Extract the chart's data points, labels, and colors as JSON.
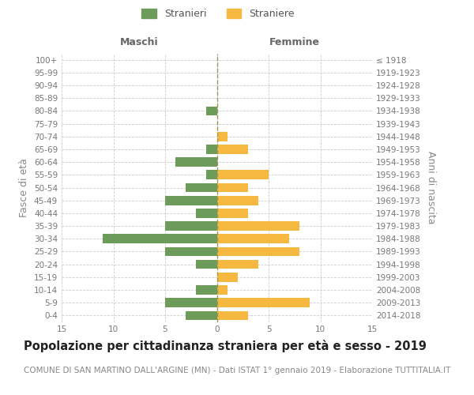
{
  "age_groups": [
    "0-4",
    "5-9",
    "10-14",
    "15-19",
    "20-24",
    "25-29",
    "30-34",
    "35-39",
    "40-44",
    "45-49",
    "50-54",
    "55-59",
    "60-64",
    "65-69",
    "70-74",
    "75-79",
    "80-84",
    "85-89",
    "90-94",
    "95-99",
    "100+"
  ],
  "birth_years": [
    "2014-2018",
    "2009-2013",
    "2004-2008",
    "1999-2003",
    "1994-1998",
    "1989-1993",
    "1984-1988",
    "1979-1983",
    "1974-1978",
    "1969-1973",
    "1964-1968",
    "1959-1963",
    "1954-1958",
    "1949-1953",
    "1944-1948",
    "1939-1943",
    "1934-1938",
    "1929-1933",
    "1924-1928",
    "1919-1923",
    "≤ 1918"
  ],
  "males": [
    3,
    5,
    2,
    0,
    2,
    5,
    11,
    5,
    2,
    5,
    3,
    1,
    4,
    1,
    0,
    0,
    1,
    0,
    0,
    0,
    0
  ],
  "females": [
    3,
    9,
    1,
    2,
    4,
    8,
    7,
    8,
    3,
    4,
    3,
    5,
    0,
    3,
    1,
    0,
    0,
    0,
    0,
    0,
    0
  ],
  "male_color": "#6d9b5a",
  "female_color": "#f5b942",
  "background_color": "#ffffff",
  "grid_color": "#cccccc",
  "title": "Popolazione per cittadinanza straniera per età e sesso - 2019",
  "subtitle": "COMUNE DI SAN MARTINO DALL'ARGINE (MN) - Dati ISTAT 1° gennaio 2019 - Elaborazione TUTTITALIA.IT",
  "ylabel_left": "Fasce di età",
  "ylabel_right": "Anni di nascita",
  "xlabel_maschi": "Maschi",
  "xlabel_femmine": "Femmine",
  "legend_stranieri": "Stranieri",
  "legend_straniere": "Straniere",
  "xlim": 15,
  "xticks": [
    -15,
    -10,
    -5,
    0,
    5,
    10,
    15
  ],
  "xtick_labels": [
    "15",
    "10",
    "5",
    "0",
    "5",
    "10",
    "15"
  ],
  "title_fontsize": 10.5,
  "subtitle_fontsize": 7.5,
  "tick_fontsize": 7.5,
  "label_fontsize": 9
}
